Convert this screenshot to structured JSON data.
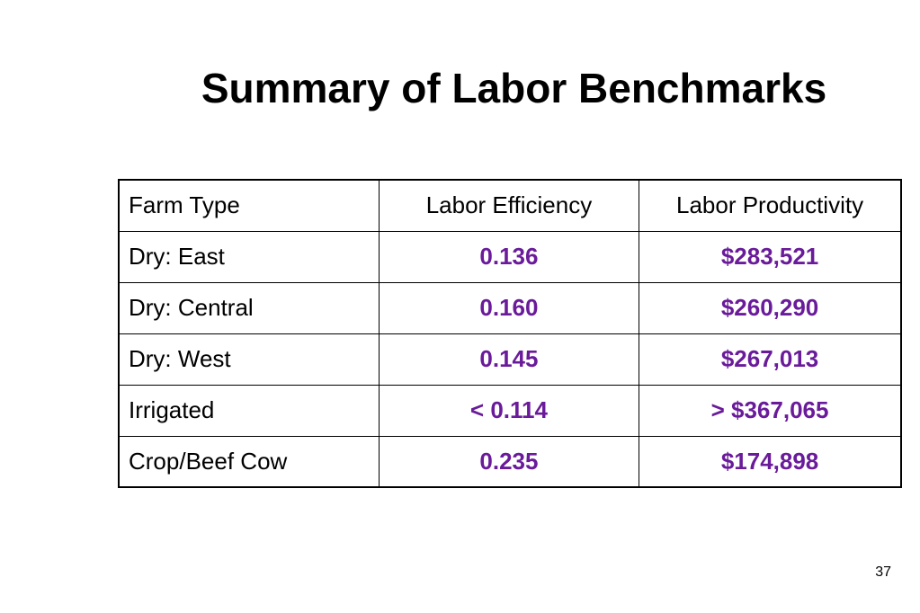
{
  "slide": {
    "title": "Summary of Labor Benchmarks",
    "page_number": "37",
    "value_color": "#6a1b9a"
  },
  "table": {
    "headers": [
      "Farm Type",
      "Labor Efficiency",
      "Labor Productivity"
    ],
    "rows": [
      {
        "farm_type": "Dry: East",
        "efficiency": "0.136",
        "productivity": "$283,521"
      },
      {
        "farm_type": "Dry: Central",
        "efficiency": "0.160",
        "productivity": "$260,290"
      },
      {
        "farm_type": "Dry: West",
        "efficiency": "0.145",
        "productivity": "$267,013"
      },
      {
        "farm_type": "Irrigated",
        "efficiency": "< 0.114",
        "productivity": "> $367,065"
      },
      {
        "farm_type": "Crop/Beef Cow",
        "efficiency": "0.235",
        "productivity": "$174,898"
      }
    ]
  }
}
